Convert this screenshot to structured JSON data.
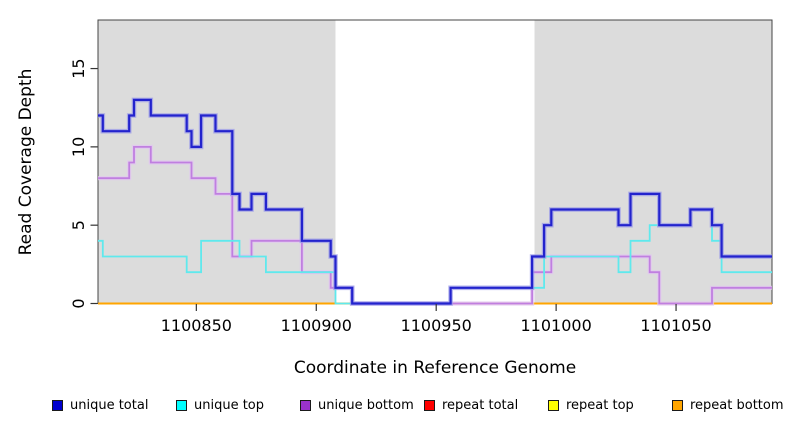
{
  "figure": {
    "x_axis_title": "Coordinate in Reference Genome",
    "y_axis_title": "Read Coverage Depth"
  },
  "chart_data": {
    "type": "line",
    "subtype": "step-after",
    "title": "",
    "xlabel": "Coordinate in Reference Genome",
    "ylabel": "Read Coverage Depth",
    "xlim": [
      1100809,
      1101090
    ],
    "ylim": [
      0,
      18.1
    ],
    "x_ticks": [
      1100850,
      1100900,
      1100950,
      1101000,
      1101050
    ],
    "y_ticks": [
      0,
      5,
      10,
      15
    ],
    "grid": false,
    "legend_position": "bottom",
    "plot_background": "#ffffff",
    "frame_color": "#444444",
    "shaded_regions": [
      {
        "name": "unique-region-left",
        "x0": 1100809,
        "x1": 1100908,
        "color": "#dcdcdc"
      },
      {
        "name": "unique-region-right",
        "x0": 1100991,
        "x1": 1101090,
        "color": "#dcdcdc"
      }
    ],
    "series": [
      {
        "name": "repeat total",
        "color": "#ee2222",
        "width": 1.6,
        "points": [
          [
            1100809,
            0
          ]
        ]
      },
      {
        "name": "repeat top",
        "color": "#ffff00",
        "width": 1.6,
        "points": [
          [
            1100809,
            0
          ]
        ]
      },
      {
        "name": "repeat bottom",
        "color": "#ffa500",
        "width": 2.0,
        "points": [
          [
            1100809,
            0
          ]
        ]
      },
      {
        "name": "unique bottom",
        "color": "#c07fe0",
        "halo": "#e2c6f2",
        "width": 1.8,
        "points": [
          [
            1100809,
            8
          ],
          [
            1100822,
            9
          ],
          [
            1100824,
            10
          ],
          [
            1100831,
            9
          ],
          [
            1100848,
            8
          ],
          [
            1100858,
            7
          ],
          [
            1100865,
            3
          ],
          [
            1100873,
            4
          ],
          [
            1100894,
            2
          ],
          [
            1100906,
            1
          ],
          [
            1100915,
            0
          ],
          [
            1100990,
            2
          ],
          [
            1100998,
            3
          ],
          [
            1101039,
            2
          ],
          [
            1101043,
            0
          ],
          [
            1101065,
            1
          ]
        ]
      },
      {
        "name": "unique top",
        "color": "#5fe9ed",
        "width": 1.8,
        "points": [
          [
            1100809,
            4
          ],
          [
            1100811,
            3
          ],
          [
            1100846,
            2
          ],
          [
            1100852,
            4
          ],
          [
            1100868,
            3
          ],
          [
            1100879,
            2
          ],
          [
            1100908,
            0
          ],
          [
            1100956,
            1
          ],
          [
            1100995,
            3
          ],
          [
            1101026,
            2
          ],
          [
            1101031,
            4
          ],
          [
            1101039,
            5
          ],
          [
            1101056,
            6
          ],
          [
            1101065,
            4
          ],
          [
            1101069,
            2
          ]
        ]
      },
      {
        "name": "unique total",
        "color": "#2323cd",
        "halo": "#9a9ae8",
        "width": 2.2,
        "points": [
          [
            1100809,
            12
          ],
          [
            1100811,
            11
          ],
          [
            1100822,
            12
          ],
          [
            1100824,
            13
          ],
          [
            1100831,
            12
          ],
          [
            1100846,
            11
          ],
          [
            1100848,
            10
          ],
          [
            1100852,
            12
          ],
          [
            1100858,
            11
          ],
          [
            1100865,
            7
          ],
          [
            1100868,
            6
          ],
          [
            1100873,
            7
          ],
          [
            1100879,
            6
          ],
          [
            1100894,
            4
          ],
          [
            1100906,
            3
          ],
          [
            1100908,
            1
          ],
          [
            1100915,
            0
          ],
          [
            1100956,
            1
          ],
          [
            1100990,
            3
          ],
          [
            1100995,
            5
          ],
          [
            1100998,
            6
          ],
          [
            1101026,
            5
          ],
          [
            1101031,
            7
          ],
          [
            1101043,
            5
          ],
          [
            1101056,
            6
          ],
          [
            1101065,
            5
          ],
          [
            1101069,
            3
          ]
        ]
      }
    ],
    "legend": [
      {
        "label": "unique total",
        "fill": "#0000cd"
      },
      {
        "label": "unique top",
        "fill": "#00ffff"
      },
      {
        "label": "unique bottom",
        "fill": "#9932cc"
      },
      {
        "label": "repeat total",
        "fill": "#ff0000"
      },
      {
        "label": "repeat top",
        "fill": "#ffff00"
      },
      {
        "label": "repeat bottom",
        "fill": "#ffa500"
      }
    ]
  },
  "layout_note": ""
}
